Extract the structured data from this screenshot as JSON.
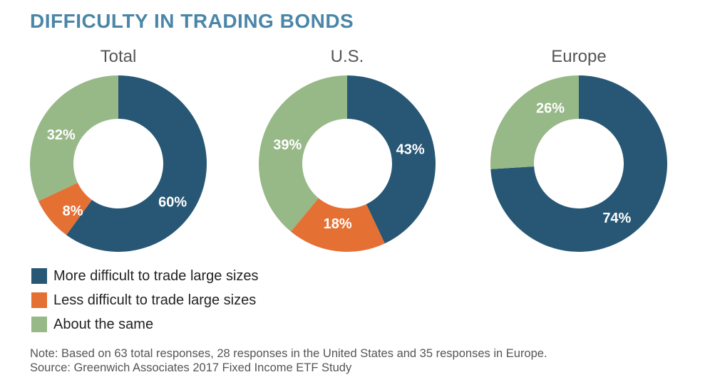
{
  "title": "DIFFICULTY IN TRADING BONDS",
  "colors": {
    "more_difficult": "#275774",
    "less_difficult": "#e57034",
    "about_same": "#97b887",
    "title": "#4a86a8"
  },
  "legend": [
    {
      "label": "More difficult to trade large sizes",
      "color": "#275774"
    },
    {
      "label": "Less difficult to trade large sizes",
      "color": "#e57034"
    },
    {
      "label": "About the same",
      "color": "#97b887"
    }
  ],
  "note": "Note: Based on 63 total responses, 28 responses in the United States and 35 responses in Europe.",
  "source": "Source: Greenwich Associates 2017 Fixed Income ETF Study",
  "chart_data": [
    {
      "type": "pie",
      "donut": true,
      "title": "Total",
      "labels": [
        "More difficult to trade large sizes",
        "Less difficult to trade large sizes",
        "About the same"
      ],
      "values": [
        60,
        8,
        32
      ],
      "value_labels": [
        "60%",
        "8%",
        "32%"
      ]
    },
    {
      "type": "pie",
      "donut": true,
      "title": "U.S.",
      "labels": [
        "More difficult to trade large sizes",
        "Less difficult to trade large sizes",
        "About the same"
      ],
      "values": [
        43,
        18,
        39
      ],
      "value_labels": [
        "43%",
        "18%",
        "39%"
      ]
    },
    {
      "type": "pie",
      "donut": true,
      "title": "Europe",
      "labels": [
        "More difficult to trade large sizes",
        "About the same"
      ],
      "values": [
        74,
        26
      ],
      "value_labels": [
        "74%",
        "26%"
      ]
    }
  ]
}
